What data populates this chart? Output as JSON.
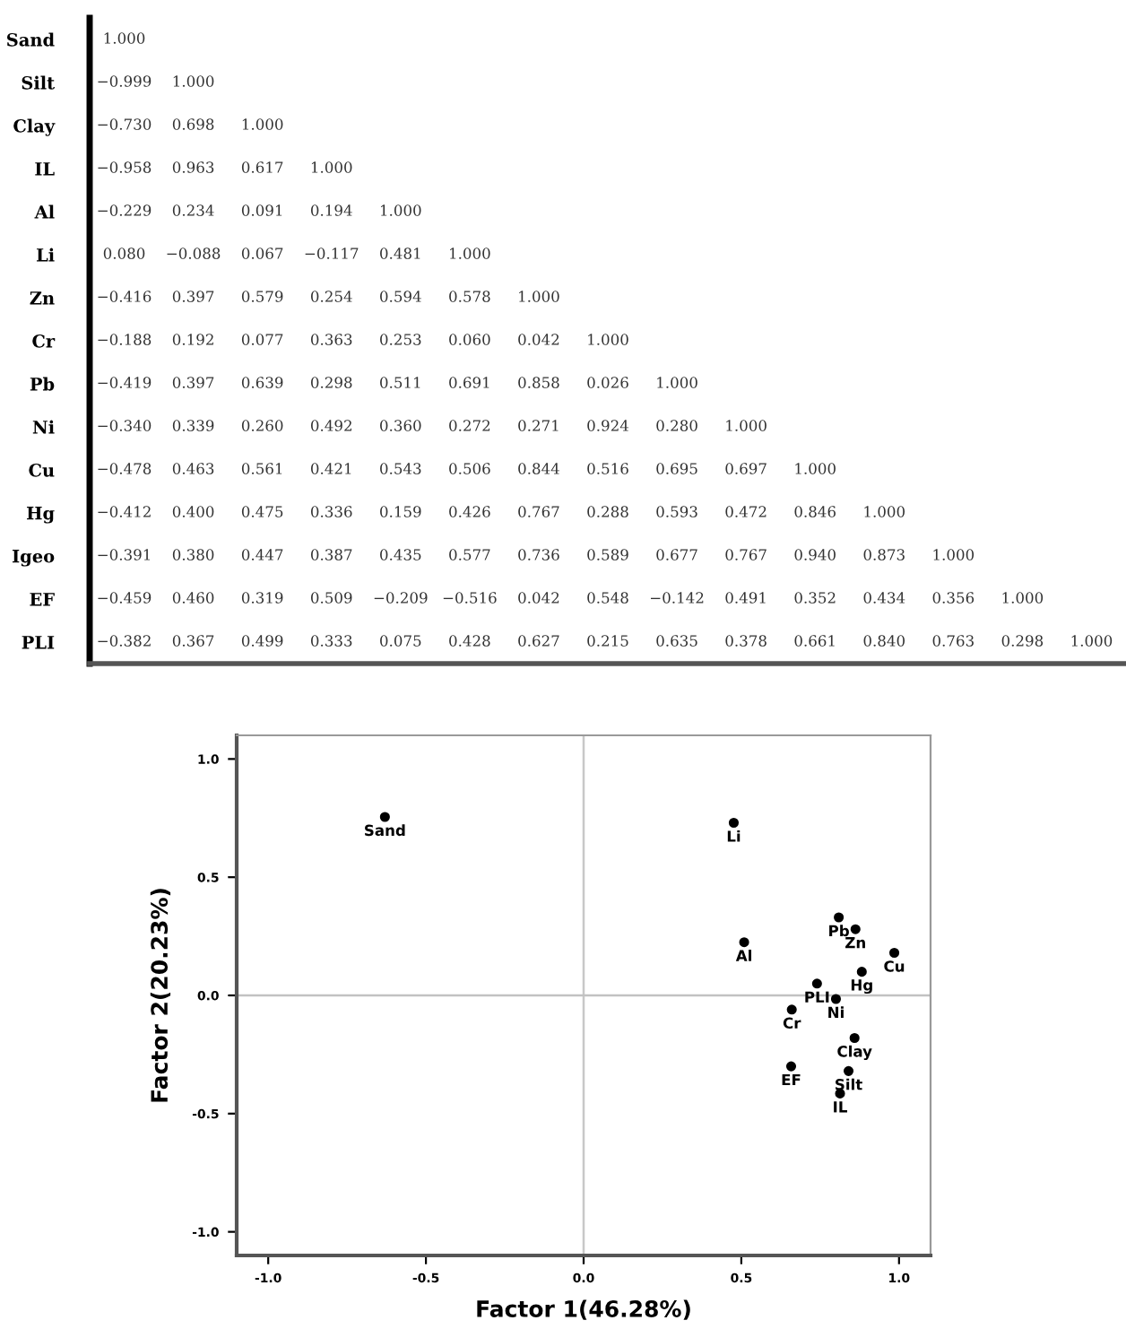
{
  "chart_data": [
    {
      "type": "heatmap",
      "categories": [
        null,
        null,
        null,
        null,
        null,
        null,
        null,
        null,
        null,
        null,
        null,
        null,
        null,
        null,
        null
      ],
      "y_categories": [
        "Sand",
        "Silt",
        "Clay",
        "IL",
        "Al",
        "Li",
        "Zn",
        "Cr",
        "Pb",
        "Ni",
        "Cu",
        "Hg",
        "Igeo",
        "EF",
        "PLI"
      ],
      "cells": [
        [
          1.0,
          null,
          null,
          null,
          null,
          null,
          null,
          null,
          null,
          null,
          null,
          null,
          null,
          null,
          null
        ],
        [
          -0.999,
          1.0,
          null,
          null,
          null,
          null,
          null,
          null,
          null,
          null,
          null,
          null,
          null,
          null,
          null
        ],
        [
          -0.73,
          0.698,
          1.0,
          null,
          null,
          null,
          null,
          null,
          null,
          null,
          null,
          null,
          null,
          null,
          null
        ],
        [
          -0.958,
          0.963,
          0.617,
          1.0,
          null,
          null,
          null,
          null,
          null,
          null,
          null,
          null,
          null,
          null,
          null
        ],
        [
          -0.229,
          0.234,
          0.091,
          0.194,
          1.0,
          null,
          null,
          null,
          null,
          null,
          null,
          null,
          null,
          null,
          null
        ],
        [
          0.08,
          -0.088,
          0.067,
          -0.117,
          0.481,
          1.0,
          null,
          null,
          null,
          null,
          null,
          null,
          null,
          null,
          null
        ],
        [
          -0.416,
          0.397,
          0.579,
          0.254,
          0.594,
          0.578,
          1.0,
          null,
          null,
          null,
          null,
          null,
          null,
          null,
          null
        ],
        [
          -0.188,
          0.192,
          0.077,
          0.363,
          0.253,
          0.06,
          0.042,
          1.0,
          null,
          null,
          null,
          null,
          null,
          null,
          null
        ],
        [
          -0.419,
          0.397,
          0.639,
          0.298,
          0.511,
          0.691,
          0.858,
          0.026,
          1.0,
          null,
          null,
          null,
          null,
          null,
          null
        ],
        [
          -0.34,
          0.339,
          0.26,
          0.492,
          0.36,
          0.272,
          0.271,
          0.924,
          0.28,
          1.0,
          null,
          null,
          null,
          null,
          null
        ],
        [
          -0.478,
          0.463,
          0.561,
          0.421,
          0.543,
          0.506,
          0.844,
          0.516,
          0.695,
          0.697,
          1.0,
          null,
          null,
          null,
          null
        ],
        [
          -0.412,
          0.4,
          0.475,
          0.336,
          0.159,
          0.426,
          0.767,
          0.288,
          0.593,
          0.472,
          0.846,
          1.0,
          null,
          null,
          null
        ],
        [
          -0.391,
          0.38,
          0.447,
          0.387,
          0.435,
          0.577,
          0.736,
          0.589,
          0.677,
          0.767,
          0.94,
          0.873,
          1.0,
          null,
          null
        ],
        [
          -0.459,
          0.46,
          0.319,
          0.509,
          -0.209,
          -0.516,
          0.042,
          0.548,
          -0.142,
          0.491,
          0.352,
          0.434,
          0.356,
          1.0,
          null
        ],
        [
          -0.382,
          0.367,
          0.499,
          0.333,
          0.075,
          0.428,
          0.627,
          0.215,
          0.635,
          0.378,
          0.661,
          0.84,
          0.763,
          0.298,
          1.0
        ]
      ],
      "cell_labels": [
        [
          "1.000",
          null,
          null,
          null,
          null,
          null,
          null,
          null,
          null,
          null,
          null,
          null,
          null,
          null,
          null
        ],
        [
          "−0.999",
          "1.000",
          null,
          null,
          null,
          null,
          null,
          null,
          null,
          null,
          null,
          null,
          null,
          null,
          null
        ],
        [
          "−0.730",
          "0.698",
          "1.000",
          null,
          null,
          null,
          null,
          null,
          null,
          null,
          null,
          null,
          null,
          null,
          null
        ],
        [
          "−0.958",
          "0.963",
          "0.617",
          "1.000",
          null,
          null,
          null,
          null,
          null,
          null,
          null,
          null,
          null,
          null,
          null
        ],
        [
          "−0.229",
          "0.234",
          "0.091",
          "0.194",
          "1.000",
          null,
          null,
          null,
          null,
          null,
          null,
          null,
          null,
          null,
          null
        ],
        [
          "0.080",
          "−0.088",
          "0.067",
          "−0.117",
          "0.481",
          "1.000",
          null,
          null,
          null,
          null,
          null,
          null,
          null,
          null,
          null
        ],
        [
          "−0.416",
          "0.397",
          "0.579",
          "0.254",
          "0.594",
          "0.578",
          "1.000",
          null,
          null,
          null,
          null,
          null,
          null,
          null,
          null
        ],
        [
          "−0.188",
          "0.192",
          "0.077",
          "0.363",
          "0.253",
          "0.060",
          "0.042",
          "1.000",
          null,
          null,
          null,
          null,
          null,
          null,
          null
        ],
        [
          "−0.419",
          "0.397",
          "0.639",
          "0.298",
          "0.511",
          "0.691",
          "0.858",
          "0.026",
          "1.000",
          null,
          null,
          null,
          null,
          null,
          null
        ],
        [
          "−0.340",
          "0.339",
          "0.260",
          "0.492",
          "0.360",
          "0.272",
          "0.271",
          "0.924",
          "0.280",
          "1.000",
          null,
          null,
          null,
          null,
          null
        ],
        [
          "−0.478",
          "0.463",
          "0.561",
          "0.421",
          "0.543",
          "0.506",
          "0.844",
          "0.516",
          "0.695",
          "0.697",
          "1.000",
          null,
          null,
          null,
          null
        ],
        [
          "−0.412",
          "0.400",
          "0.475",
          "0.336",
          "0.159",
          "0.426",
          "0.767",
          "0.288",
          "0.593",
          "0.472",
          "0.846",
          "1.000",
          null,
          null,
          null
        ],
        [
          "−0.391",
          "0.380",
          "0.447",
          "0.387",
          "0.435",
          "0.577",
          "0.736",
          "0.589",
          "0.677",
          "0.767",
          "0.940",
          "0.873",
          "1.000",
          null,
          null
        ],
        [
          "−0.459",
          "0.460",
          "0.319",
          "0.509",
          "−0.209",
          "−0.516",
          "0.042",
          "0.548",
          "−0.142",
          "0.491",
          "0.352",
          "0.434",
          "0.356",
          "1.000",
          null
        ],
        [
          "−0.382",
          "0.367",
          "0.499",
          "0.333",
          "0.075",
          "0.428",
          "0.627",
          "0.215",
          "0.635",
          "0.378",
          "0.661",
          "0.840",
          "0.763",
          "0.298",
          "1.000"
        ]
      ],
      "data_labels": true
    },
    {
      "type": "scatter",
      "xlabel": "Factor 1(46.28%)",
      "ylabel": "Factor 2(20.23%)",
      "x": [
        -0.63,
        0.476,
        0.809,
        0.862,
        0.509,
        0.985,
        0.882,
        0.74,
        0.8,
        0.66,
        0.859,
        0.658,
        0.84,
        0.813
      ],
      "values": [
        0.755,
        0.73,
        0.33,
        0.28,
        0.225,
        0.18,
        0.1,
        0.05,
        -0.015,
        -0.06,
        -0.18,
        -0.3,
        -0.32,
        -0.415
      ],
      "color": "#000000",
      "marker": "circle",
      "annotations": [
        {
          "text": "Sand",
          "x": -0.63,
          "y": 0.755
        },
        {
          "text": "Li",
          "x": 0.476,
          "y": 0.73
        },
        {
          "text": "Pb",
          "x": 0.809,
          "y": 0.33
        },
        {
          "text": "Zn",
          "x": 0.862,
          "y": 0.28
        },
        {
          "text": "Al",
          "x": 0.509,
          "y": 0.225
        },
        {
          "text": "Cu",
          "x": 0.985,
          "y": 0.18
        },
        {
          "text": "Hg",
          "x": 0.882,
          "y": 0.1
        },
        {
          "text": "PLI",
          "x": 0.74,
          "y": 0.05
        },
        {
          "text": "Ni",
          "x": 0.8,
          "y": -0.015
        },
        {
          "text": "Cr",
          "x": 0.66,
          "y": -0.06
        },
        {
          "text": "Clay",
          "x": 0.859,
          "y": -0.18
        },
        {
          "text": "EF",
          "x": 0.658,
          "y": -0.3
        },
        {
          "text": "Silt",
          "x": 0.84,
          "y": -0.32
        },
        {
          "text": "IL",
          "x": 0.813,
          "y": -0.415
        }
      ],
      "xlim": [
        -1.1,
        1.1
      ],
      "ylim": [
        -1.1,
        1.1
      ],
      "xticks": [
        {
          "value": -1.0,
          "label": "-1.0"
        },
        {
          "value": -0.5,
          "label": "-0.5"
        },
        {
          "value": 0.0,
          "label": "0.0"
        },
        {
          "value": 0.5,
          "label": "0.5"
        },
        {
          "value": 1.0,
          "label": "1.0"
        }
      ],
      "yticks": [
        {
          "value": -1.0,
          "label": "-1.0"
        },
        {
          "value": -0.5,
          "label": "-0.5"
        },
        {
          "value": 0.0,
          "label": "0.0"
        },
        {
          "value": 0.5,
          "label": "0.5"
        },
        {
          "value": 1.0,
          "label": "1.0"
        }
      ],
      "ref_lines": [
        {
          "axis": "x",
          "value": 0,
          "color": "#c8c8c8"
        },
        {
          "axis": "y",
          "value": 0,
          "color": "#c2c2c2"
        }
      ],
      "grid": false
    }
  ]
}
